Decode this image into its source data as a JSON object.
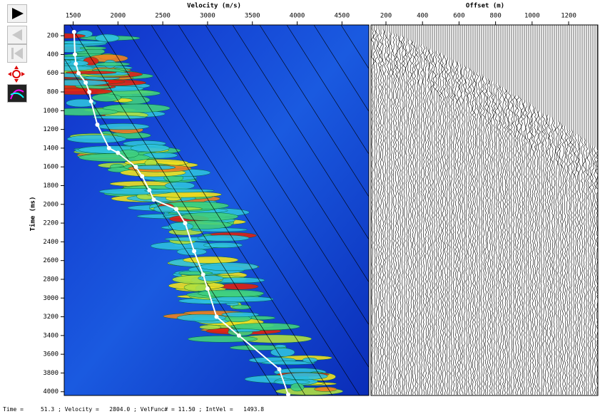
{
  "chart_data": [
    {
      "type": "line",
      "title": "Velocity (m/s)",
      "y_label": "Time (ms)",
      "color": "#ffffff",
      "x": [
        1510,
        1520,
        1530,
        1560,
        1640,
        1680,
        1700,
        1770,
        1900,
        2000,
        2200,
        2270,
        2350,
        2400,
        2650,
        2750,
        2850,
        2950,
        3000,
        3100,
        3350,
        3800,
        3900
      ],
      "values": [
        160,
        400,
        500,
        600,
        700,
        800,
        900,
        1150,
        1400,
        1450,
        1600,
        1700,
        1850,
        1950,
        2050,
        2200,
        2500,
        2750,
        2900,
        3200,
        3400,
        3760,
        4030
      ],
      "xlim": [
        1400,
        4800
      ],
      "xticks": [
        1500,
        2000,
        2500,
        3000,
        3500,
        4000,
        4500
      ],
      "ylim": [
        85,
        4040
      ],
      "yticks": [
        200,
        400,
        600,
        800,
        1000,
        1200,
        1400,
        1600,
        1800,
        2000,
        2200,
        2400,
        2600,
        2800,
        3000,
        3200,
        3400,
        3600,
        3800,
        4000
      ]
    },
    {
      "type": "wiggle",
      "title": "Offset (m)",
      "xlim": [
        118,
        1360
      ],
      "xticks": [
        200,
        400,
        600,
        800,
        1000,
        1200
      ]
    }
  ],
  "status_bar": {
    "text": "Time =     51.3 ; Velocity =   2804.0 ; VelFunc# = 11.50 ; IntVel =   1493.8"
  }
}
